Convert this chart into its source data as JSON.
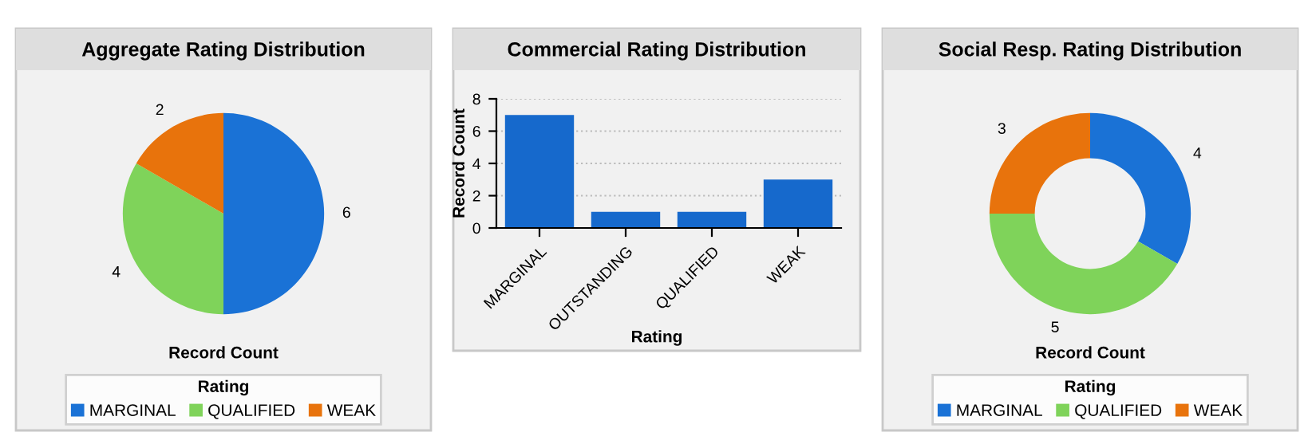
{
  "chart_data": [
    {
      "type": "pie",
      "title": "Aggregate Rating Distribution",
      "xlabel": "Record Count",
      "legend_title": "Rating",
      "legend": "bottom",
      "data_labels": true,
      "categories": [
        "MARGINAL",
        "QUALIFIED",
        "WEAK"
      ],
      "values": [
        6,
        4,
        2
      ],
      "colors": [
        "#1a72d6",
        "#7fd35a",
        "#e8730c"
      ]
    },
    {
      "type": "bar",
      "title": "Commercial Rating Distribution",
      "xlabel": "Rating",
      "ylabel": "Record Count",
      "grid": "y",
      "categories": [
        "MARGINAL",
        "OUTSTANDING",
        "QUALIFIED",
        "WEAK"
      ],
      "values": [
        7,
        1,
        1,
        3
      ],
      "color": "#1669cc",
      "ylim": [
        0,
        8
      ],
      "yticks": [
        0,
        2,
        4,
        6,
        8
      ]
    },
    {
      "type": "donut",
      "title": "Social Resp. Rating Distribution",
      "xlabel": "Record Count",
      "legend_title": "Rating",
      "legend": "bottom",
      "data_labels": true,
      "categories": [
        "MARGINAL",
        "QUALIFIED",
        "WEAK"
      ],
      "values": [
        4,
        5,
        3
      ],
      "colors": [
        "#1a72d6",
        "#7fd35a",
        "#e8730c"
      ]
    }
  ]
}
